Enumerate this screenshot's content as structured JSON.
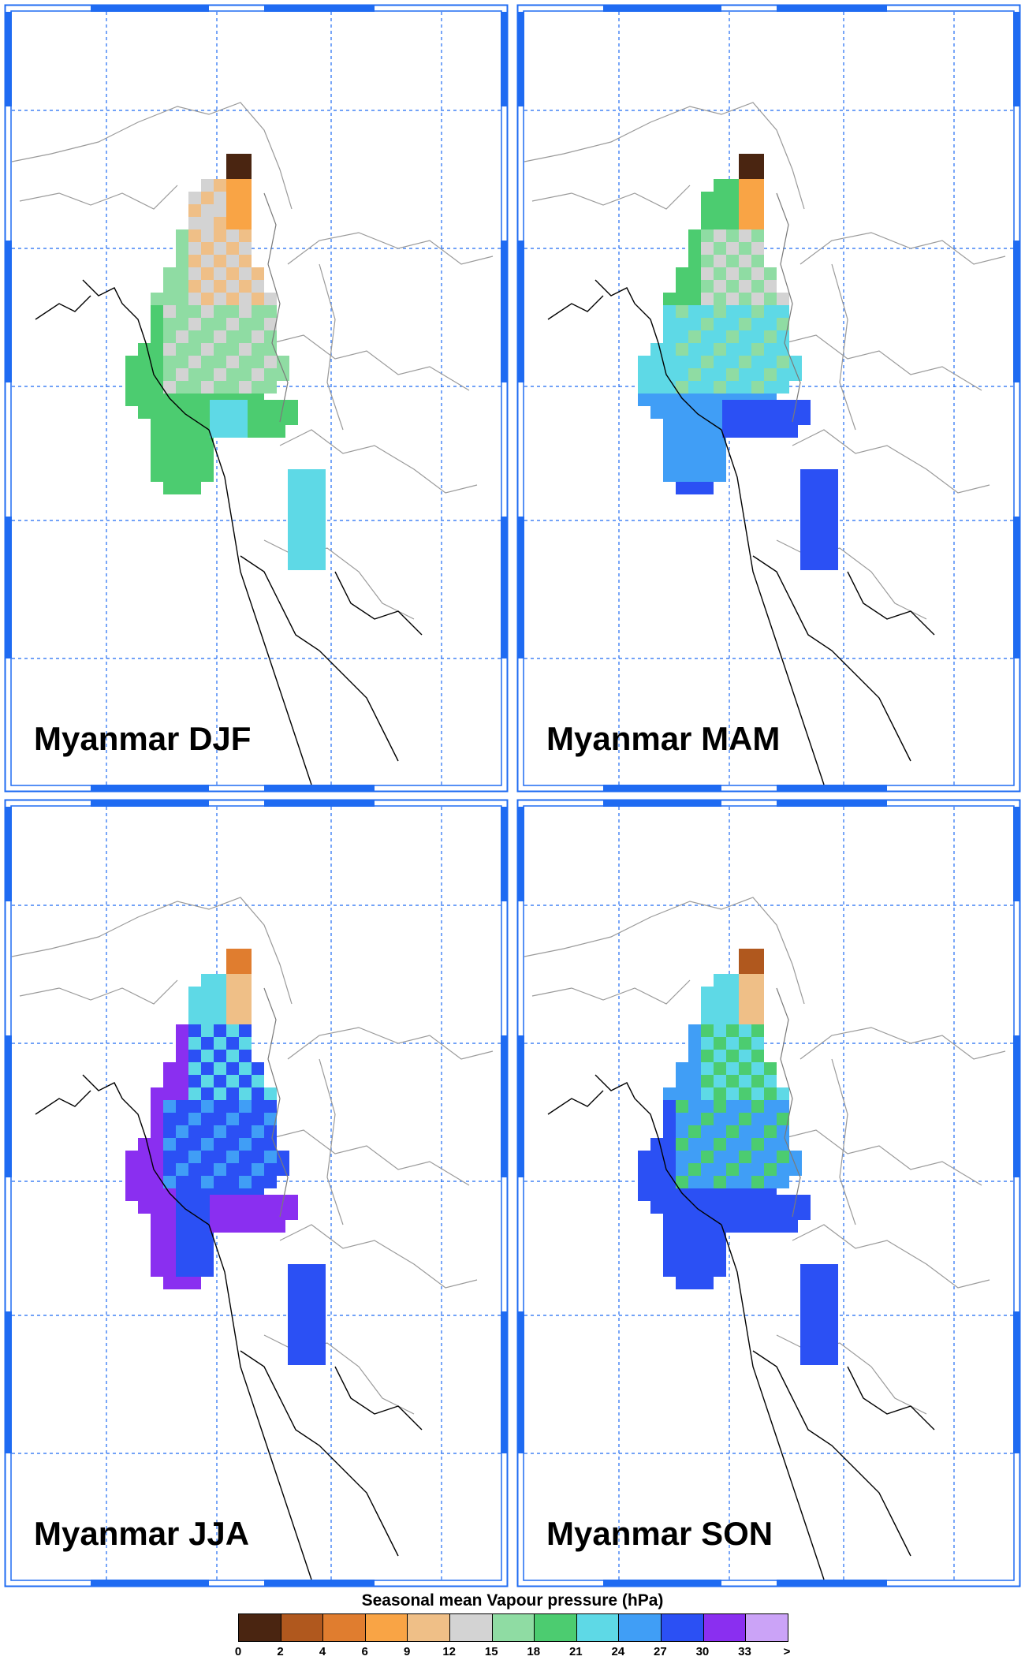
{
  "panels": [
    {
      "title": "Myanmar DJF",
      "season": "DJF"
    },
    {
      "title": "Myanmar MAM",
      "season": "MAM"
    },
    {
      "title": "Myanmar JJA",
      "season": "JJA"
    },
    {
      "title": "Myanmar SON",
      "season": "SON"
    }
  ],
  "legend": {
    "title": "Seasonal mean Vapour pressure (hPa)",
    "ticks": [
      "0",
      "2",
      "4",
      "6",
      "9",
      "12",
      "15",
      "18",
      "21",
      "24",
      "27",
      "30",
      "33",
      ">"
    ],
    "colors": [
      "#4a2511",
      "#b0581e",
      "#e07d2f",
      "#f9a445",
      "#efbf87",
      "#d3d3d3",
      "#8fdca3",
      "#4ccc70",
      "#5ed9e6",
      "#409ef6",
      "#2b50f4",
      "#8a2ff0",
      "#cba3f7"
    ]
  }
}
